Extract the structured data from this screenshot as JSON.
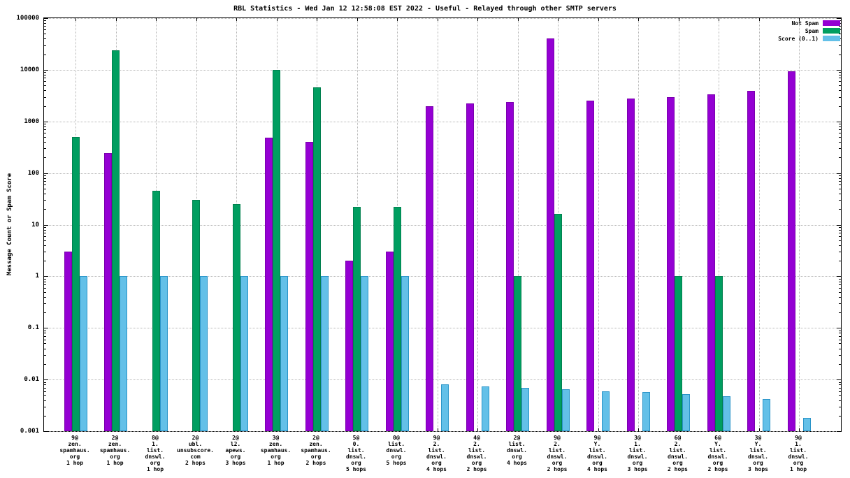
{
  "chart_data": {
    "type": "bar",
    "title": "RBL Statistics - Wed Jan 12 12:58:08 EST 2022 - Useful - Relayed through other SMTP servers",
    "ylabel": "Message Count or Spam Score",
    "y_scale": "log",
    "ylim": [
      0.001,
      100000
    ],
    "y_ticks": [
      0.001,
      0.01,
      0.1,
      1,
      10,
      100,
      1000,
      10000,
      100000
    ],
    "grid": true,
    "legend_position": "top-right",
    "categories": [
      [
        "9@",
        "zen.",
        "spamhaus.",
        "org",
        "1 hop"
      ],
      [
        "2@",
        "zen.",
        "spamhaus.",
        "org",
        "1 hop"
      ],
      [
        "8@",
        "1.",
        "list.",
        "dnswl.",
        "org",
        "1 hop"
      ],
      [
        "2@",
        "ubl.",
        "unsubscore.",
        "com",
        "2 hops"
      ],
      [
        "2@",
        "l2.",
        "apews.",
        "org",
        "3 hops"
      ],
      [
        "3@",
        "zen.",
        "spamhaus.",
        "org",
        "1 hop"
      ],
      [
        "2@",
        "zen.",
        "spamhaus.",
        "org",
        "2 hops"
      ],
      [
        "5@",
        "0.",
        "list.",
        "dnswl.",
        "org",
        "5 hops"
      ],
      [
        "0@",
        "list.",
        "dnswl.",
        "org",
        "5 hops"
      ],
      [
        "9@",
        "2.",
        "list.",
        "dnswl.",
        "org",
        "4 hops"
      ],
      [
        "4@",
        "2.",
        "list.",
        "dnswl.",
        "org",
        "2 hops"
      ],
      [
        "2@",
        "list.",
        "dnswl.",
        "org",
        "4 hops"
      ],
      [
        "9@",
        "2.",
        "list.",
        "dnswl.",
        "org",
        "2 hops"
      ],
      [
        "9@",
        "Y.",
        "list.",
        "dnswl.",
        "org",
        "4 hops"
      ],
      [
        "3@",
        "1.",
        "list.",
        "dnswl.",
        "org",
        "3 hops"
      ],
      [
        "6@",
        "2.",
        "list.",
        "dnswl.",
        "org",
        "2 hops"
      ],
      [
        "6@",
        "Y.",
        "list.",
        "dnswl.",
        "org",
        "2 hops"
      ],
      [
        "3@",
        "Y.",
        "list.",
        "dnswl.",
        "org",
        "3 hops"
      ],
      [
        "9@",
        "1.",
        "list.",
        "dnswl.",
        "org",
        "1 hop"
      ]
    ],
    "series": [
      {
        "name": "Not Spam",
        "color": "#9400d3",
        "border_color": "#7a00ae",
        "values": [
          3,
          245,
          null,
          null,
          null,
          490,
          405,
          2,
          3,
          2000,
          2200,
          2400,
          40000,
          2500,
          2800,
          3000,
          3300,
          3900,
          9500
        ]
      },
      {
        "name": "Spam",
        "color": "#009e60",
        "border_color": "#00804e",
        "values": [
          500,
          24000,
          45,
          30,
          25,
          10000,
          4600,
          22,
          22,
          null,
          null,
          1,
          16,
          null,
          null,
          1,
          1,
          null,
          null
        ]
      },
      {
        "name": "Score (0..1)",
        "color": "#63c0e8",
        "border_color": "#2a94c8",
        "values": [
          1,
          1,
          1,
          1,
          1,
          1,
          1,
          1,
          1,
          0.008,
          0.0073,
          0.0069,
          0.0064,
          0.006,
          0.0057,
          0.0052,
          0.0047,
          0.0042,
          0.0018
        ]
      }
    ]
  }
}
